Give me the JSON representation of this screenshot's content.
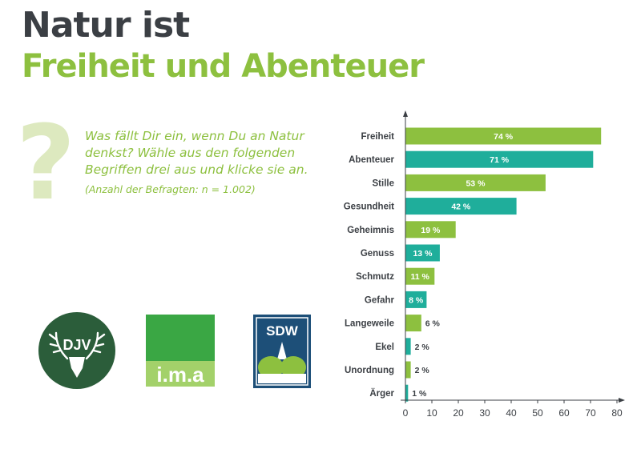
{
  "header": {
    "title_line1": "Natur ist",
    "title_line2": "Freiheit und Abenteuer"
  },
  "question": {
    "mark": "?",
    "text": "Was fällt Dir ein, wenn Du an Natur denkst? Wähle aus den folgenden Begriffen drei aus und klicke sie an.",
    "sample_note": "(Anzahl der Befragten: n = 1.002)"
  },
  "logos": {
    "djv": "DJV",
    "ima": "i.m.a",
    "sdw": "SDW"
  },
  "colors": {
    "green": "#8dc03f",
    "teal": "#1fae9b",
    "dark": "#3b3f44",
    "djv_green": "#2b5d3a",
    "ima_green": "#3aa744",
    "sdw_blue": "#1d4f78"
  },
  "chart_data": {
    "type": "bar",
    "orientation": "horizontal",
    "categories": [
      "Freiheit",
      "Abenteuer",
      "Stille",
      "Gesundheit",
      "Geheimnis",
      "Genuss",
      "Schmutz",
      "Gefahr",
      "Langeweile",
      "Ekel",
      "Unordnung",
      "Ärger"
    ],
    "values": [
      74,
      71,
      53,
      42,
      19,
      13,
      11,
      8,
      6,
      2,
      2,
      1
    ],
    "value_labels": [
      "74 %",
      "71 %",
      "53 %",
      "42 %",
      "19 %",
      "13 %",
      "11 %",
      "8 %",
      "6 %",
      "2 %",
      "2 %",
      "1 %"
    ],
    "bar_colors": [
      "green",
      "teal",
      "green",
      "teal",
      "green",
      "teal",
      "green",
      "teal",
      "green",
      "teal",
      "green",
      "teal"
    ],
    "xlim": [
      0,
      80
    ],
    "xticks": [
      0,
      10,
      20,
      30,
      40,
      50,
      60,
      70,
      80
    ],
    "xlabel": "",
    "ylabel": "",
    "grid": false
  }
}
